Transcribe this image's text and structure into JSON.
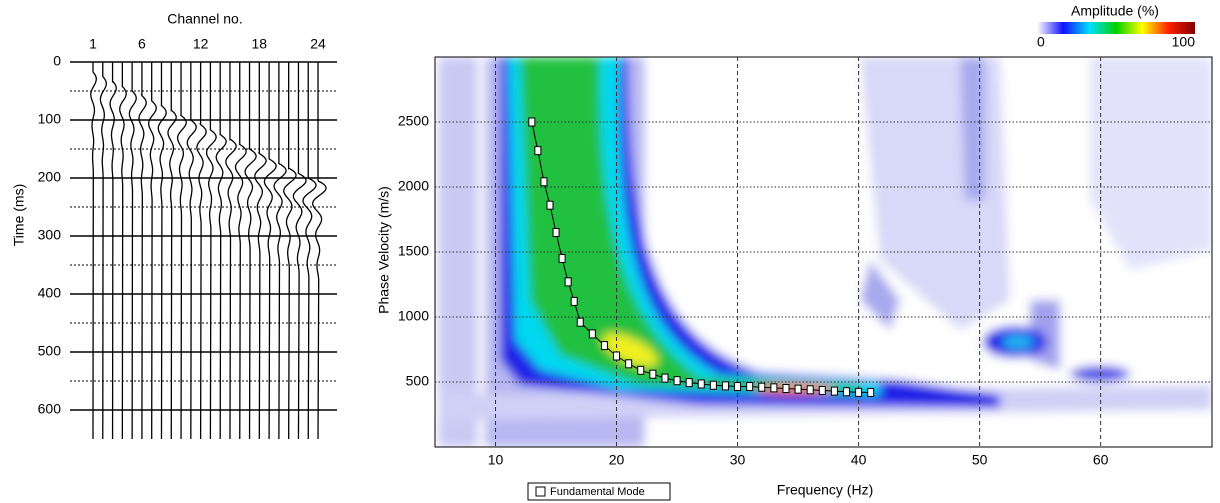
{
  "chart_data": [
    {
      "type": "wiggle",
      "title": "Channel no.",
      "y_label": "Time (ms)",
      "x": [
        1,
        2,
        3,
        4,
        5,
        6,
        7,
        8,
        9,
        10,
        11,
        12,
        13,
        14,
        15,
        16,
        17,
        18,
        19,
        20,
        21,
        22,
        23,
        24
      ],
      "values": [
        17,
        25,
        33,
        42,
        50,
        58,
        67,
        75,
        83,
        92,
        100,
        108,
        117,
        125,
        133,
        142,
        150,
        158,
        167,
        175,
        183,
        192,
        200,
        205
      ],
      "color": "#000000",
      "xlim": [
        -1.35,
        25.94
      ],
      "xticks": [
        1,
        6,
        12,
        18,
        24
      ],
      "ylim": [
        0,
        650
      ],
      "yticks": [
        0,
        100,
        200,
        300,
        400,
        500,
        600
      ],
      "grid": true
    },
    {
      "type": "scatter",
      "x_label": "Frequency (Hz)",
      "y_label": "Phase Velocity (m/s)",
      "x": [
        13,
        13.5,
        14,
        14.5,
        15,
        15.5,
        16,
        16.5,
        17,
        18,
        19,
        20,
        21,
        22,
        23,
        24,
        25,
        26,
        27,
        28,
        29,
        30,
        31,
        32,
        33,
        34,
        35,
        36,
        37,
        38,
        39,
        40,
        41
      ],
      "series": [
        {
          "name": "Fundamental Mode",
          "color": "#ffffff",
          "values": [
            2500,
            2280,
            2040,
            1860,
            1650,
            1450,
            1270,
            1120,
            960,
            870,
            780,
            700,
            640,
            590,
            560,
            530,
            510,
            495,
            485,
            475,
            470,
            465,
            465,
            460,
            455,
            450,
            445,
            440,
            435,
            430,
            425,
            420,
            420
          ]
        }
      ],
      "xlim": [
        5,
        69.2
      ],
      "xticks": [
        10,
        20,
        30,
        40,
        50,
        60
      ],
      "ylim": [
        0,
        3000
      ],
      "yticks": [
        500,
        1000,
        1500,
        2000,
        2500
      ],
      "grid": true,
      "colorbar": {
        "title": "Amplitude (%)",
        "ticks": [
          0,
          100
        ],
        "colors": [
          "#ffffff",
          "#1010ff",
          "#00e0ff",
          "#00d000",
          "#ffff00",
          "#ff2000",
          "#800000"
        ]
      }
    }
  ]
}
